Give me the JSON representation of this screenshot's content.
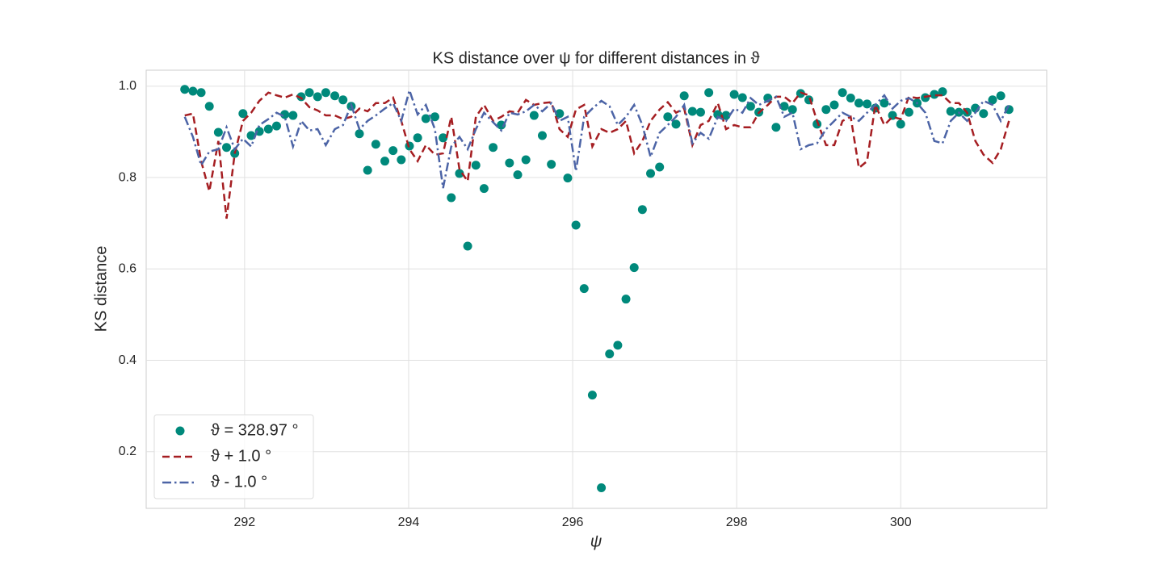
{
  "chart_data": {
    "type": "line",
    "title": "KS distance over ψ for different distances in ϑ",
    "xlabel": "ψ",
    "ylabel": "KS distance",
    "xlim": [
      290.8,
      301.78
    ],
    "ylim": [
      0.076,
      1.035
    ],
    "xticks": [
      292,
      294,
      296,
      298,
      300
    ],
    "yticks": [
      0.2,
      0.4,
      0.6,
      0.8,
      {
        "value": 1,
        "label": "1.0"
      }
    ],
    "grid": true,
    "legend": "lower left",
    "x": [
      291.27,
      291.37,
      291.47,
      291.57,
      291.68,
      291.78,
      291.88,
      291.98,
      292.08,
      292.18,
      292.29,
      292.39,
      292.49,
      292.59,
      292.69,
      292.79,
      292.89,
      292.99,
      293.1,
      293.2,
      293.3,
      293.4,
      293.5,
      293.6,
      293.71,
      293.81,
      293.91,
      294.01,
      294.11,
      294.21,
      294.32,
      294.42,
      294.52,
      294.62,
      294.72,
      294.82,
      294.92,
      295.03,
      295.13,
      295.23,
      295.33,
      295.43,
      295.53,
      295.63,
      295.74,
      295.84,
      295.94,
      296.04,
      296.14,
      296.24,
      296.35,
      296.45,
      296.55,
      296.65,
      296.75,
      296.85,
      296.95,
      297.06,
      297.16,
      297.26,
      297.36,
      297.46,
      297.56,
      297.66,
      297.77,
      297.87,
      297.97,
      298.07,
      298.17,
      298.27,
      298.38,
      298.48,
      298.58,
      298.68,
      298.78,
      298.88,
      298.98,
      299.09,
      299.19,
      299.29,
      299.39,
      299.49,
      299.59,
      299.69,
      299.8,
      299.9,
      300.0,
      300.1,
      300.2,
      300.3,
      300.41,
      300.51,
      300.61,
      300.71,
      300.81,
      300.91,
      301.01,
      301.12,
      301.22,
      301.32
    ],
    "series": [
      {
        "name": "ϑ = 328.97 °",
        "type": "scatter",
        "color": "#00897b",
        "values": [
          0.993,
          0.989,
          0.986,
          0.956,
          0.899,
          0.866,
          0.853,
          0.94,
          0.892,
          0.901,
          0.906,
          0.913,
          0.938,
          0.936,
          0.977,
          0.986,
          0.977,
          0.986,
          0.979,
          0.97,
          0.956,
          0.896,
          0.816,
          0.873,
          0.836,
          0.859,
          0.839,
          0.869,
          0.887,
          0.929,
          0.933,
          0.887,
          0.756,
          0.809,
          0.65,
          0.827,
          0.776,
          0.866,
          0.915,
          0.832,
          0.806,
          0.839,
          0.936,
          0.892,
          0.829,
          0.94,
          0.799,
          0.696,
          0.557,
          0.324,
          0.121,
          0.414,
          0.433,
          0.534,
          0.603,
          0.73,
          0.809,
          0.823,
          0.933,
          0.917,
          0.979,
          0.945,
          0.943,
          0.986,
          0.938,
          0.936,
          0.982,
          0.975,
          0.956,
          0.943,
          0.974,
          0.91,
          0.956,
          0.949,
          0.984,
          0.97,
          0.917,
          0.949,
          0.959,
          0.986,
          0.974,
          0.963,
          0.961,
          0.952,
          0.963,
          0.936,
          0.917,
          0.943,
          0.963,
          0.975,
          0.982,
          0.988,
          0.945,
          0.943,
          0.943,
          0.952,
          0.94,
          0.97,
          0.979,
          0.949
        ]
      },
      {
        "name": "ϑ + 1.0 °",
        "type": "line",
        "dash": "dashed",
        "color": "#a51e22",
        "values": [
          0.936,
          0.94,
          0.836,
          0.77,
          0.88,
          0.71,
          0.853,
          0.924,
          0.942,
          0.968,
          0.986,
          0.98,
          0.975,
          0.982,
          0.974,
          0.954,
          0.947,
          0.936,
          0.936,
          0.928,
          0.933,
          0.951,
          0.945,
          0.963,
          0.963,
          0.975,
          0.924,
          0.862,
          0.836,
          0.871,
          0.85,
          0.853,
          0.933,
          0.818,
          0.792,
          0.933,
          0.959,
          0.924,
          0.933,
          0.945,
          0.942,
          0.97,
          0.959,
          0.963,
          0.965,
          0.906,
          0.889,
          0.949,
          0.959,
          0.868,
          0.906,
          0.898,
          0.906,
          0.924,
          0.853,
          0.88,
          0.924,
          0.949,
          0.965,
          0.942,
          0.951,
          0.871,
          0.915,
          0.924,
          0.963,
          0.906,
          0.915,
          0.91,
          0.91,
          0.942,
          0.959,
          0.977,
          0.977,
          0.963,
          0.986,
          0.98,
          0.924,
          0.871,
          0.871,
          0.924,
          0.933,
          0.821,
          0.836,
          0.959,
          0.915,
          0.933,
          0.928,
          0.977,
          0.974,
          0.977,
          0.98,
          0.98,
          0.963,
          0.963,
          0.942,
          0.88,
          0.85,
          0.832,
          0.862,
          0.924
        ]
      },
      {
        "name": "ϑ - 1.0 °",
        "type": "line",
        "dash": "dashdot",
        "color": "#4c64a6",
        "values": [
          0.933,
          0.889,
          0.827,
          0.857,
          0.862,
          0.91,
          0.862,
          0.885,
          0.868,
          0.915,
          0.928,
          0.942,
          0.933,
          0.868,
          0.924,
          0.903,
          0.906,
          0.871,
          0.906,
          0.915,
          0.959,
          0.906,
          0.924,
          0.936,
          0.951,
          0.963,
          0.924,
          0.991,
          0.938,
          0.959,
          0.906,
          0.777,
          0.868,
          0.889,
          0.862,
          0.906,
          0.942,
          0.921,
          0.903,
          0.942,
          0.938,
          0.945,
          0.959,
          0.945,
          0.963,
          0.924,
          0.933,
          0.814,
          0.933,
          0.951,
          0.968,
          0.956,
          0.915,
          0.933,
          0.959,
          0.915,
          0.845,
          0.898,
          0.915,
          0.933,
          0.959,
          0.875,
          0.898,
          0.885,
          0.933,
          0.924,
          0.951,
          0.942,
          0.974,
          0.959,
          0.968,
          0.977,
          0.933,
          0.942,
          0.862,
          0.871,
          0.875,
          0.906,
          0.924,
          0.942,
          0.933,
          0.924,
          0.942,
          0.959,
          0.98,
          0.951,
          0.968,
          0.974,
          0.963,
          0.942,
          0.88,
          0.875,
          0.924,
          0.942,
          0.924,
          0.942,
          0.968,
          0.959,
          0.924,
          0.959
        ]
      }
    ]
  }
}
